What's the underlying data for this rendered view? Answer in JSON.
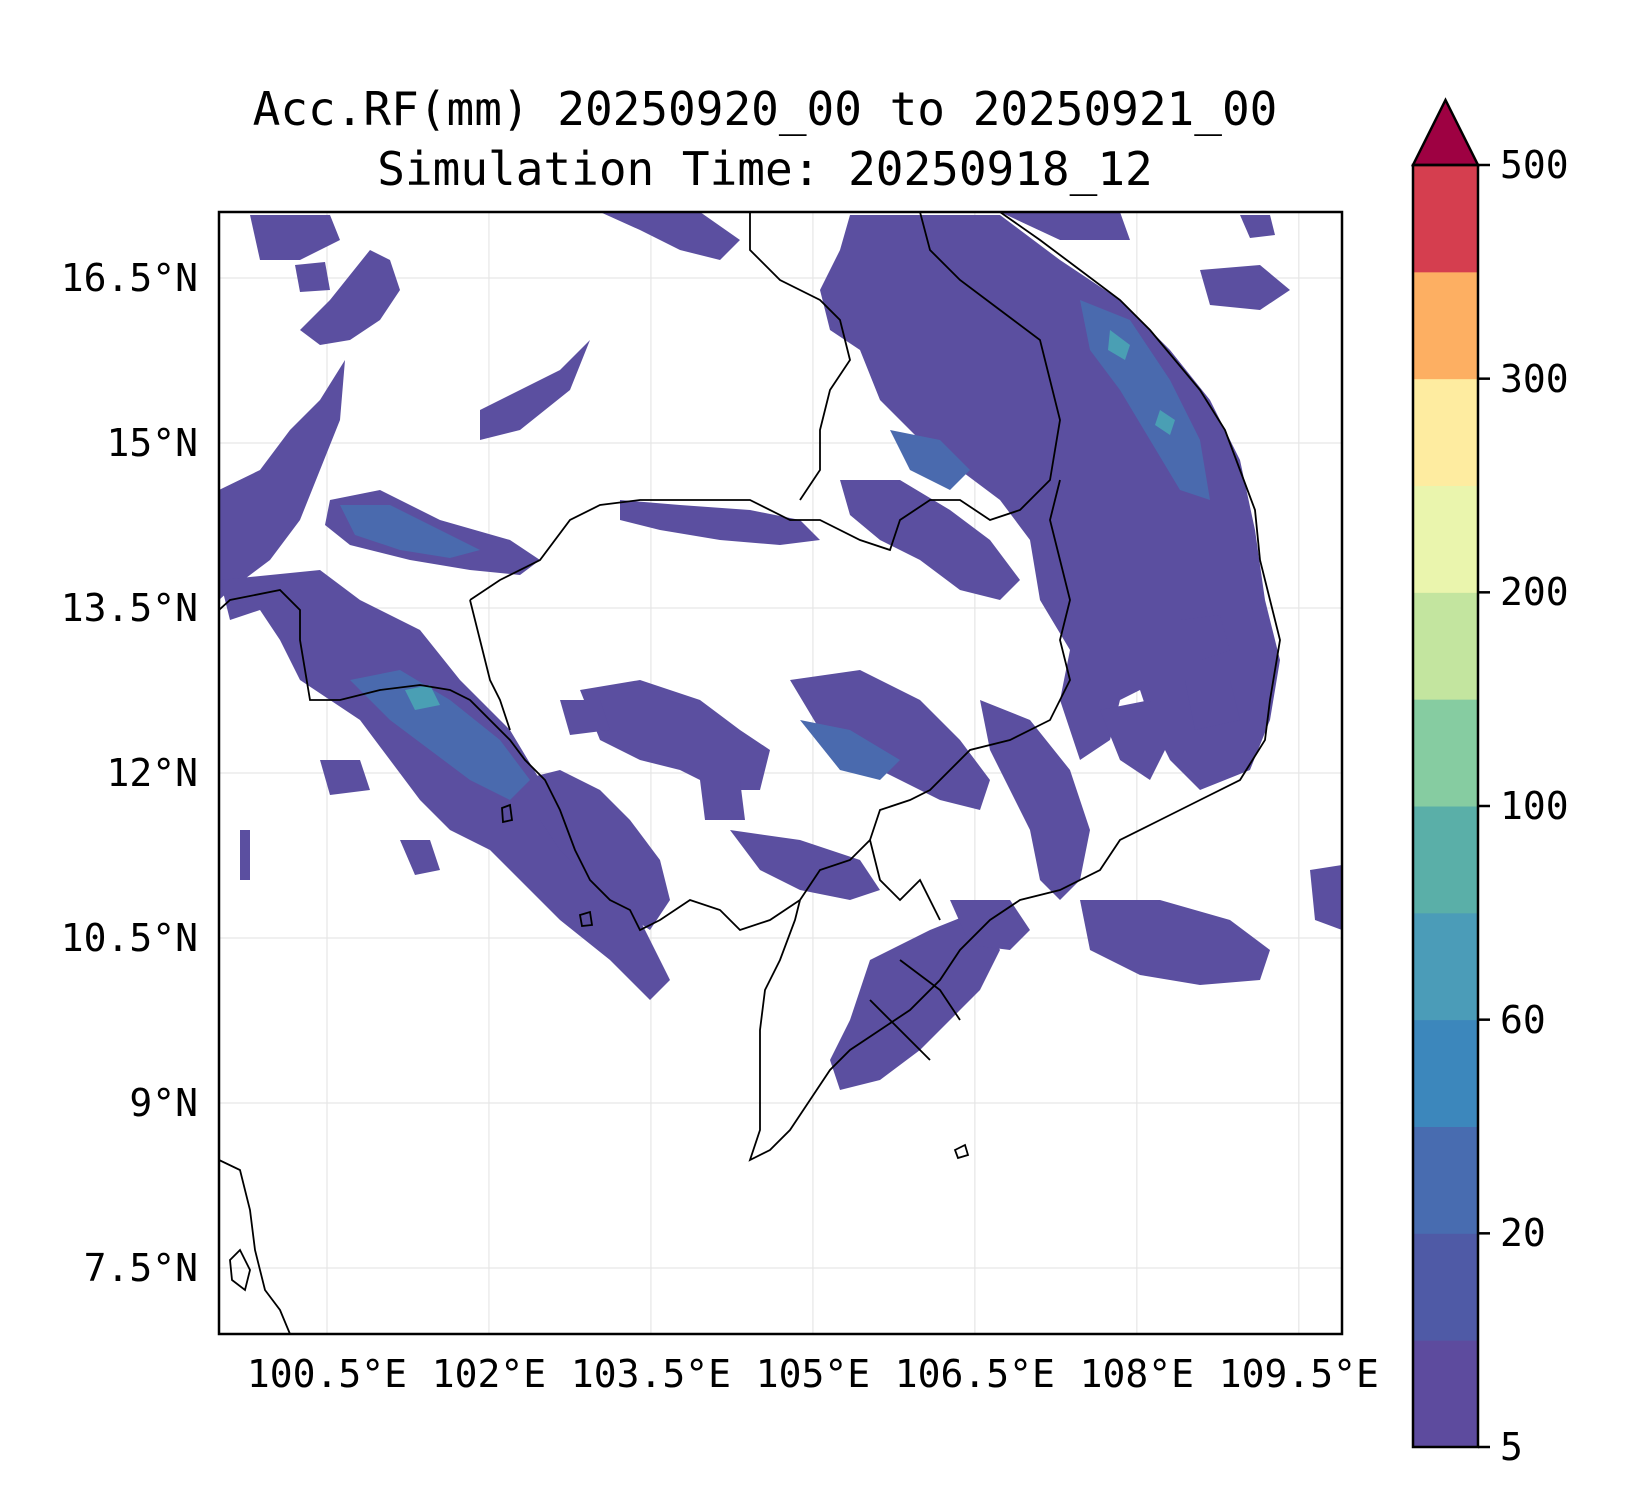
{
  "title": {
    "line1": "Acc.RF(mm) 20250920_00 to 20250921_00",
    "line2": "Simulation Time: 20250918_12"
  },
  "map": {
    "lon_range": [
      99.5,
      109.9
    ],
    "lat_range": [
      6.9,
      17.1
    ],
    "lat_ticks": [
      {
        "value": 16.5,
        "label": "16.5°N"
      },
      {
        "value": 15.0,
        "label": "15°N"
      },
      {
        "value": 13.5,
        "label": "13.5°N"
      },
      {
        "value": 12.0,
        "label": "12°N"
      },
      {
        "value": 10.5,
        "label": "10.5°N"
      },
      {
        "value": 9.0,
        "label": "9°N"
      },
      {
        "value": 7.5,
        "label": "7.5°N"
      }
    ],
    "lon_ticks": [
      {
        "value": 100.5,
        "label": "100.5°E"
      },
      {
        "value": 102.0,
        "label": "102°E"
      },
      {
        "value": 103.5,
        "label": "103.5°E"
      },
      {
        "value": 105.0,
        "label": "105°E"
      },
      {
        "value": 106.5,
        "label": "106.5°E"
      },
      {
        "value": 108.0,
        "label": "108°E"
      },
      {
        "value": 109.5,
        "label": "109.5°E"
      }
    ],
    "grid": true,
    "fill_color": "#5b4fa0",
    "fill_color_mid": "#4a6aae",
    "fill_color_high": "#4a9fb4"
  },
  "colorbar": {
    "levels": [
      "5",
      "10",
      "20",
      "40",
      "60",
      "80",
      "100",
      "150",
      "200",
      "250",
      "300",
      "400",
      "500"
    ],
    "tick_labels": [
      "5",
      "20",
      "60",
      "100",
      "200",
      "300",
      "500"
    ],
    "colors": [
      "#5d4b9e",
      "#4f5aa6",
      "#486cb0",
      "#3c87bc",
      "#4b9cb8",
      "#5aafa8",
      "#86cca1",
      "#c3e59f",
      "#eaf5ad",
      "#feeca0",
      "#fdaf62",
      "#d53e4f"
    ],
    "extend_color": "#9e0142",
    "extend": "max"
  }
}
